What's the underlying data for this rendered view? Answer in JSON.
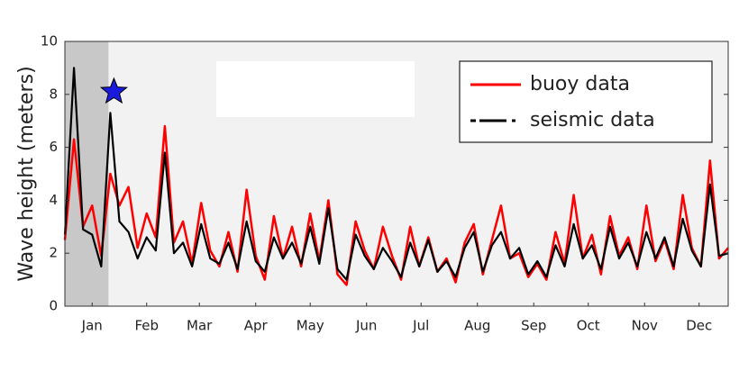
{
  "chart_data": {
    "type": "line",
    "y_label": "Wave height (meters)",
    "x": [
      0,
      5,
      10,
      15,
      20,
      25,
      30,
      35,
      40,
      45,
      50,
      55,
      60,
      65,
      70,
      75,
      80,
      85,
      90,
      95,
      100,
      105,
      110,
      115,
      120,
      125,
      130,
      135,
      140,
      145,
      150,
      155,
      160,
      165,
      170,
      175,
      180,
      185,
      190,
      195,
      200,
      205,
      210,
      215,
      220,
      225,
      230,
      235,
      240,
      245,
      250,
      255,
      260,
      265,
      270,
      275,
      280,
      285,
      290,
      295,
      300,
      305,
      310,
      315,
      320,
      325,
      330,
      335,
      340,
      345,
      350,
      355,
      360,
      365
    ],
    "series": [
      {
        "name": "buoy data",
        "color": "#ff0000",
        "values": [
          2.5,
          6.3,
          3.0,
          3.8,
          1.9,
          5.0,
          3.8,
          4.5,
          2.2,
          3.5,
          2.6,
          6.8,
          2.4,
          3.2,
          1.6,
          3.9,
          2.1,
          1.5,
          2.8,
          1.3,
          4.4,
          1.9,
          1.0,
          3.4,
          1.8,
          3.0,
          1.5,
          3.5,
          1.7,
          4.0,
          1.2,
          0.8,
          3.2,
          2.1,
          1.4,
          3.0,
          1.9,
          1.0,
          3.0,
          1.5,
          2.6,
          1.3,
          1.8,
          0.9,
          2.4,
          3.1,
          1.2,
          2.5,
          3.8,
          1.8,
          2.0,
          1.1,
          1.6,
          1.0,
          2.8,
          1.6,
          4.2,
          1.8,
          2.7,
          1.2,
          3.4,
          1.9,
          2.6,
          1.4,
          3.8,
          1.7,
          2.5,
          1.4,
          4.2,
          2.2,
          1.5,
          5.5,
          1.8,
          2.2
        ]
      },
      {
        "name": "seismic data",
        "color": "#000000",
        "values": [
          2.7,
          9.0,
          2.9,
          2.7,
          1.5,
          7.3,
          3.2,
          2.8,
          1.8,
          2.6,
          2.1,
          5.8,
          2.0,
          2.4,
          1.5,
          3.1,
          1.8,
          1.6,
          2.4,
          1.4,
          3.2,
          1.7,
          1.3,
          2.6,
          1.8,
          2.4,
          1.6,
          3.0,
          1.6,
          3.7,
          1.4,
          1.0,
          2.7,
          1.9,
          1.4,
          2.2,
          1.7,
          1.1,
          2.4,
          1.5,
          2.5,
          1.3,
          1.7,
          1.1,
          2.2,
          2.8,
          1.3,
          2.3,
          2.8,
          1.8,
          2.2,
          1.2,
          1.7,
          1.1,
          2.3,
          1.5,
          3.1,
          1.8,
          2.3,
          1.4,
          3.0,
          1.8,
          2.4,
          1.5,
          2.8,
          1.8,
          2.6,
          1.5,
          3.3,
          2.1,
          1.5,
          4.6,
          1.9,
          2.0
        ]
      }
    ],
    "xlim": [
      0,
      365
    ],
    "ylim": [
      0,
      10
    ],
    "xticks": [
      {
        "value": 15,
        "label": "Jan"
      },
      {
        "value": 45,
        "label": "Feb"
      },
      {
        "value": 74,
        "label": "Mar"
      },
      {
        "value": 105,
        "label": "Apr"
      },
      {
        "value": 135,
        "label": "May"
      },
      {
        "value": 166,
        "label": "Jun"
      },
      {
        "value": 196,
        "label": "Jul"
      },
      {
        "value": 227,
        "label": "Aug"
      },
      {
        "value": 258,
        "label": "Sep"
      },
      {
        "value": 288,
        "label": "Oct"
      },
      {
        "value": 319,
        "label": "Nov"
      },
      {
        "value": 349,
        "label": "Dec"
      }
    ],
    "yticks": [
      0,
      2,
      4,
      6,
      8,
      10
    ],
    "shade_x": [
      0,
      24
    ],
    "star": {
      "x": 27,
      "y": 8.1,
      "color": "#1a1adf"
    },
    "legend": "upper right"
  }
}
